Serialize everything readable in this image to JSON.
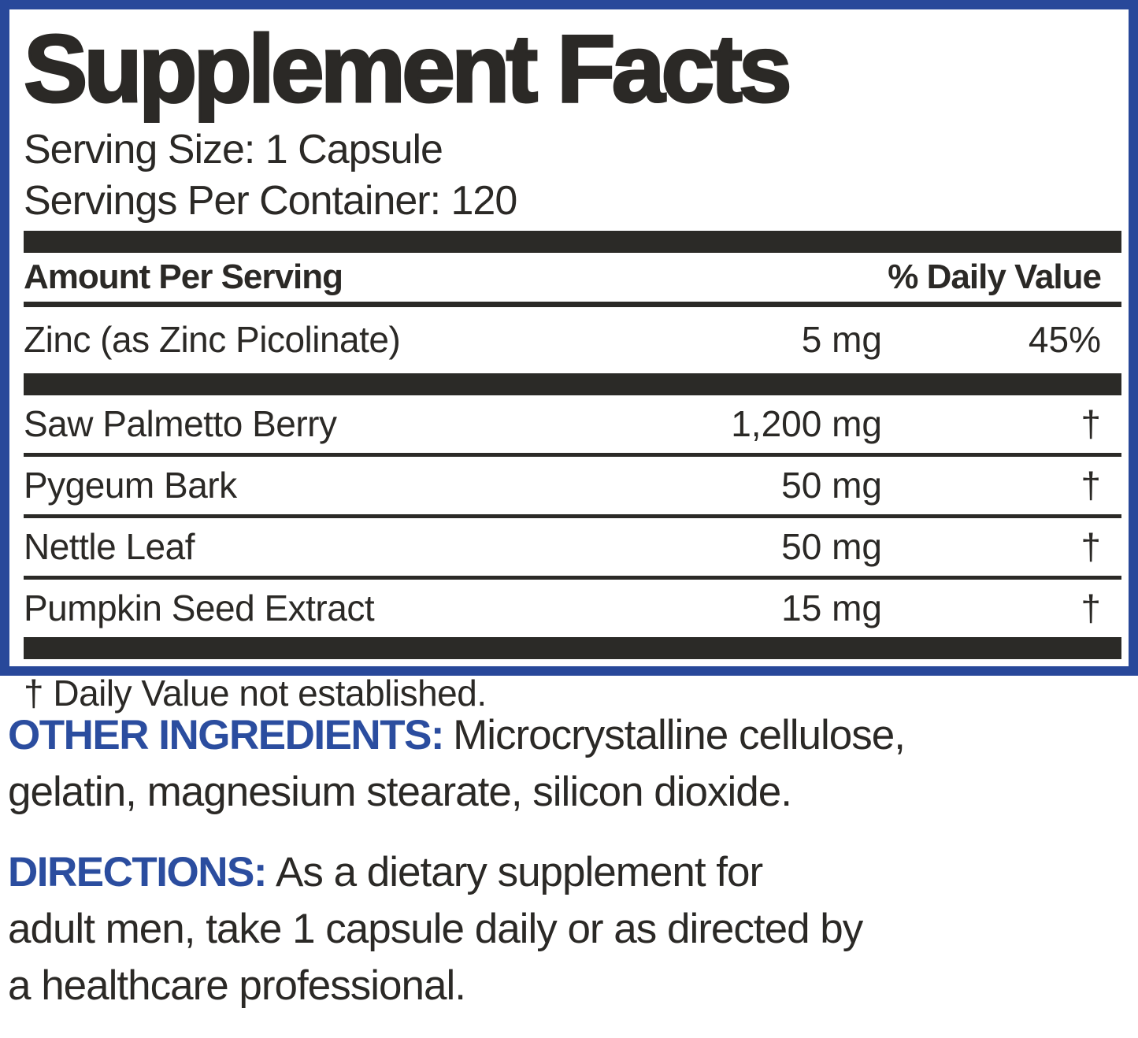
{
  "colors": {
    "accent_blue_border": "#28489A",
    "accent_blue_label": "#2B4D9F",
    "ink": "#2B2926",
    "bar": "#2B2A27"
  },
  "panel": {
    "title": "Supplement Facts",
    "serving_size": "Serving Size: 1 Capsule",
    "servings_per_container": "Servings Per Container: 120",
    "columns": {
      "amount_header": "Amount Per Serving",
      "daily_value_header": "% Daily Value"
    },
    "rows": [
      {
        "name": "Zinc (as Zinc Picolinate)",
        "amount": "5 mg",
        "daily_value": "45%"
      },
      {
        "name": "Saw Palmetto Berry",
        "amount": "1,200 mg",
        "daily_value": "†"
      },
      {
        "name": "Pygeum Bark",
        "amount": "50 mg",
        "daily_value": "†"
      },
      {
        "name": "Nettle Leaf",
        "amount": "50 mg",
        "daily_value": "†"
      },
      {
        "name": "Pumpkin Seed Extract",
        "amount": "15 mg",
        "daily_value": "†"
      }
    ],
    "footnote": "† Daily Value not established."
  },
  "other_ingredients": {
    "label": "OTHER INGREDIENTS:",
    "lines": [
      "Microcrystalline cellulose,",
      "gelatin, magnesium stearate, silicon dioxide."
    ]
  },
  "directions": {
    "label": "DIRECTIONS:",
    "lines": [
      "As a dietary supplement for",
      "adult men, take 1 capsule daily or as directed by",
      "a healthcare professional."
    ]
  }
}
